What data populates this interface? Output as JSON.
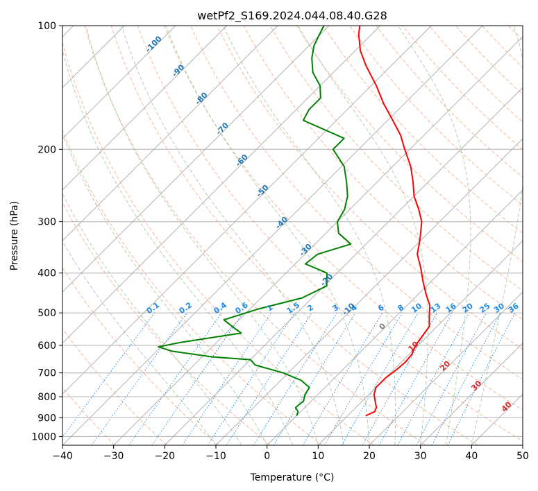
{
  "chart_data": {
    "type": "line",
    "title": "wetPf2_S169.2024.044.08.40.G28",
    "xlabel": "Temperature (°C)",
    "ylabel": "Pressure (hPa)",
    "xlim": [
      -40,
      50
    ],
    "ylim": [
      1050,
      100
    ],
    "y_scale": "log",
    "skew": true,
    "grid": true,
    "x_ticks": [
      -40,
      -30,
      -20,
      -10,
      0,
      10,
      20,
      30,
      40,
      50
    ],
    "y_ticks": [
      1000,
      900,
      800,
      700,
      600,
      500,
      400,
      300,
      200,
      100
    ],
    "series": [
      {
        "key": "temperature",
        "color": "#ff0000",
        "points": [
          [
            890,
            13.5
          ],
          [
            870,
            14.5
          ],
          [
            850,
            14.0
          ],
          [
            820,
            12.5
          ],
          [
            790,
            11.0
          ],
          [
            760,
            10.0
          ],
          [
            720,
            10.0
          ],
          [
            690,
            10.5
          ],
          [
            660,
            10.8
          ],
          [
            630,
            10.5
          ],
          [
            600,
            9.5
          ],
          [
            570,
            9.0
          ],
          [
            540,
            8.5
          ],
          [
            510,
            6.5
          ],
          [
            480,
            4.5
          ],
          [
            450,
            1.5
          ],
          [
            420,
            -1.5
          ],
          [
            390,
            -4.5
          ],
          [
            360,
            -8.0
          ],
          [
            330,
            -10.5
          ],
          [
            300,
            -13.5
          ],
          [
            280,
            -16.5
          ],
          [
            260,
            -20.0
          ],
          [
            240,
            -23.0
          ],
          [
            220,
            -26.5
          ],
          [
            200,
            -31.0
          ],
          [
            185,
            -34.5
          ],
          [
            170,
            -39.0
          ],
          [
            155,
            -44.0
          ],
          [
            140,
            -49.0
          ],
          [
            125,
            -55.0
          ],
          [
            115,
            -59.0
          ],
          [
            105,
            -62.5
          ],
          [
            100,
            -64.0
          ]
        ]
      },
      {
        "key": "dewpoint",
        "color": "#008000",
        "points": [
          [
            890,
            0.0
          ],
          [
            870,
            -0.5
          ],
          [
            850,
            -1.8
          ],
          [
            820,
            -1.5
          ],
          [
            790,
            -2.5
          ],
          [
            760,
            -3.0
          ],
          [
            730,
            -6.0
          ],
          [
            700,
            -11.0
          ],
          [
            670,
            -18.0
          ],
          [
            650,
            -20.0
          ],
          [
            640,
            -28.0
          ],
          [
            620,
            -37.0
          ],
          [
            605,
            -40.5
          ],
          [
            590,
            -37.0
          ],
          [
            560,
            -27.0
          ],
          [
            540,
            -30.0
          ],
          [
            520,
            -33.0
          ],
          [
            490,
            -28.5
          ],
          [
            460,
            -22.0
          ],
          [
            430,
            -19.5
          ],
          [
            400,
            -22.0
          ],
          [
            380,
            -28.0
          ],
          [
            360,
            -27.5
          ],
          [
            340,
            -23.0
          ],
          [
            320,
            -27.5
          ],
          [
            300,
            -30.0
          ],
          [
            280,
            -31.0
          ],
          [
            260,
            -33.0
          ],
          [
            240,
            -36.0
          ],
          [
            220,
            -39.5
          ],
          [
            200,
            -45.0
          ],
          [
            188,
            -45.0
          ],
          [
            180,
            -50.0
          ],
          [
            170,
            -56.5
          ],
          [
            160,
            -57.5
          ],
          [
            150,
            -57.5
          ],
          [
            140,
            -60.0
          ],
          [
            130,
            -64.0
          ],
          [
            120,
            -67.0
          ],
          [
            112,
            -69.0
          ],
          [
            106,
            -70.0
          ],
          [
            100,
            -71.0
          ]
        ]
      }
    ],
    "isotherm_labels": [
      "-100",
      "-90",
      "-80",
      "-70",
      "-60",
      "-50",
      "-40",
      "-30",
      "-20",
      "-10"
    ],
    "mixing_ratio_labels": [
      "0.1",
      "0.2",
      "0.4",
      "0.6",
      "1",
      "1.5",
      "2",
      "3",
      "4",
      "6",
      "8",
      "10",
      "13",
      "16",
      "20",
      "25",
      "30",
      "36"
    ],
    "warm_isotherm_labels": [
      "0",
      "10",
      "20",
      "30",
      "40"
    ],
    "colors": {
      "isotherm_label": "#1f77b4",
      "mixing_ratio": "#1e88e5",
      "dry_adiabat": "#f4a582",
      "moist_adiabat": "#8fbc8f",
      "warm_label": "#d62728",
      "zero_label": "#7f7f7f",
      "isotherm_line": "#a9a9a9"
    }
  }
}
